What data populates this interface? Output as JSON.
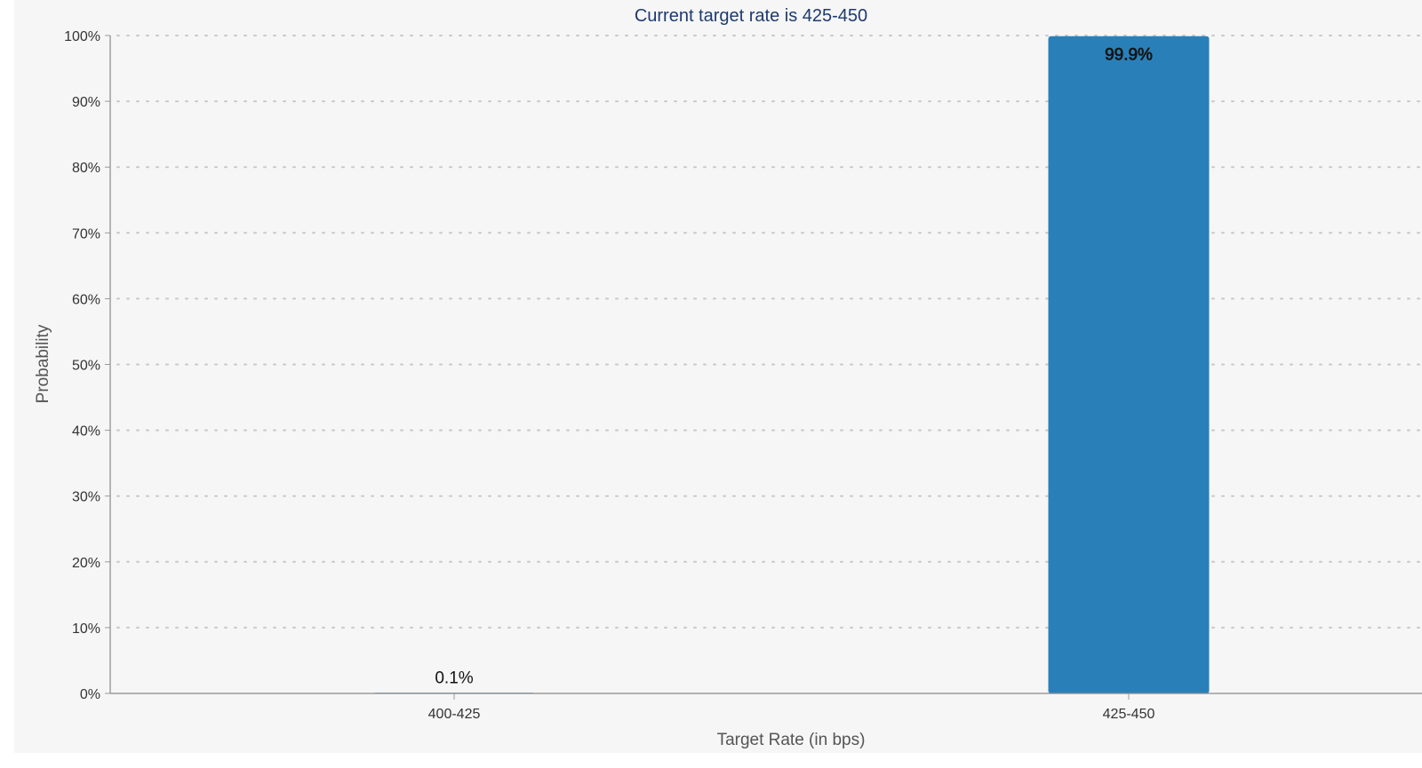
{
  "chart_data": {
    "type": "bar",
    "title": "Current target rate is 425-450",
    "xlabel": "Target Rate (in bps)",
    "ylabel": "Probability",
    "categories": [
      "400-425",
      "425-450"
    ],
    "values": [
      0.1,
      99.9
    ],
    "data_labels": [
      "0.1%",
      "99.9%"
    ],
    "ylim": [
      0,
      100
    ],
    "yticks": [
      "0%",
      "10%",
      "20%",
      "30%",
      "40%",
      "50%",
      "60%",
      "70%",
      "80%",
      "90%",
      "100%"
    ],
    "grid": true,
    "bar_color": "#2980b9"
  }
}
